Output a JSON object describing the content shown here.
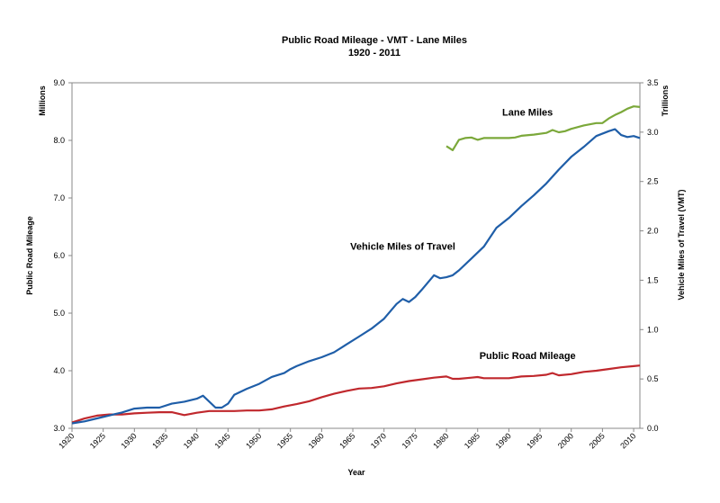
{
  "chart_data": {
    "type": "line",
    "title": "Public Road Mileage - VMT - Lane Miles",
    "subtitle": "1920 - 2011",
    "xlabel": "Year",
    "ylabel_left": "Public Road Mileage",
    "ylabel_left_units": "Millions",
    "ylabel_right": "Vehicle Miles of Travel (VMT)",
    "ylabel_right_units": "Trillions",
    "xlim": [
      1920,
      2011
    ],
    "ylim_left": [
      3.0,
      9.0
    ],
    "ylim_right": [
      0.0,
      3.5
    ],
    "x_ticks": [
      "1920",
      "1925",
      "1930",
      "1935",
      "1940",
      "1945",
      "1950",
      "1955",
      "1960",
      "1965",
      "1970",
      "1975",
      "1980",
      "1985",
      "1990",
      "1995",
      "2000",
      "2005",
      "2010"
    ],
    "y_left_ticks": [
      "3.0",
      "4.0",
      "5.0",
      "6.0",
      "7.0",
      "8.0",
      "9.0"
    ],
    "y_right_ticks": [
      "0.0",
      "0.5",
      "1.0",
      "1.5",
      "2.0",
      "2.5",
      "3.0",
      "3.5"
    ],
    "grid": false,
    "series": [
      {
        "name": "Public Road Mileage",
        "axis": "left",
        "color": "#c0282d",
        "points": [
          [
            1920,
            3.1
          ],
          [
            1922,
            3.17
          ],
          [
            1924,
            3.22
          ],
          [
            1926,
            3.24
          ],
          [
            1928,
            3.24
          ],
          [
            1930,
            3.26
          ],
          [
            1932,
            3.27
          ],
          [
            1934,
            3.28
          ],
          [
            1936,
            3.28
          ],
          [
            1938,
            3.23
          ],
          [
            1940,
            3.27
          ],
          [
            1942,
            3.3
          ],
          [
            1944,
            3.3
          ],
          [
            1946,
            3.3
          ],
          [
            1948,
            3.31
          ],
          [
            1950,
            3.31
          ],
          [
            1952,
            3.33
          ],
          [
            1954,
            3.38
          ],
          [
            1956,
            3.42
          ],
          [
            1958,
            3.47
          ],
          [
            1960,
            3.54
          ],
          [
            1962,
            3.6
          ],
          [
            1964,
            3.65
          ],
          [
            1966,
            3.69
          ],
          [
            1968,
            3.7
          ],
          [
            1970,
            3.73
          ],
          [
            1972,
            3.78
          ],
          [
            1974,
            3.82
          ],
          [
            1976,
            3.85
          ],
          [
            1978,
            3.88
          ],
          [
            1980,
            3.9
          ],
          [
            1981,
            3.86
          ],
          [
            1982,
            3.86
          ],
          [
            1984,
            3.88
          ],
          [
            1985,
            3.89
          ],
          [
            1986,
            3.87
          ],
          [
            1988,
            3.87
          ],
          [
            1990,
            3.87
          ],
          [
            1992,
            3.9
          ],
          [
            1994,
            3.91
          ],
          [
            1996,
            3.93
          ],
          [
            1997,
            3.96
          ],
          [
            1998,
            3.92
          ],
          [
            2000,
            3.94
          ],
          [
            2002,
            3.98
          ],
          [
            2004,
            4.0
          ],
          [
            2006,
            4.03
          ],
          [
            2008,
            4.06
          ],
          [
            2010,
            4.08
          ],
          [
            2011,
            4.09
          ]
        ]
      },
      {
        "name": "Vehicle Miles of Travel",
        "axis": "right",
        "color": "#1f5ea8",
        "points": [
          [
            1920,
            0.05
          ],
          [
            1922,
            0.07
          ],
          [
            1924,
            0.1
          ],
          [
            1926,
            0.13
          ],
          [
            1928,
            0.16
          ],
          [
            1930,
            0.2
          ],
          [
            1932,
            0.21
          ],
          [
            1934,
            0.21
          ],
          [
            1936,
            0.25
          ],
          [
            1938,
            0.27
          ],
          [
            1940,
            0.3
          ],
          [
            1941,
            0.33
          ],
          [
            1943,
            0.21
          ],
          [
            1944,
            0.21
          ],
          [
            1945,
            0.25
          ],
          [
            1946,
            0.34
          ],
          [
            1948,
            0.4
          ],
          [
            1950,
            0.45
          ],
          [
            1952,
            0.52
          ],
          [
            1954,
            0.56
          ],
          [
            1955,
            0.6
          ],
          [
            1956,
            0.63
          ],
          [
            1958,
            0.68
          ],
          [
            1960,
            0.72
          ],
          [
            1962,
            0.77
          ],
          [
            1964,
            0.85
          ],
          [
            1966,
            0.93
          ],
          [
            1968,
            1.01
          ],
          [
            1970,
            1.11
          ],
          [
            1972,
            1.26
          ],
          [
            1973,
            1.31
          ],
          [
            1974,
            1.28
          ],
          [
            1975,
            1.33
          ],
          [
            1976,
            1.4
          ],
          [
            1978,
            1.55
          ],
          [
            1979,
            1.52
          ],
          [
            1980,
            1.53
          ],
          [
            1981,
            1.55
          ],
          [
            1982,
            1.6
          ],
          [
            1984,
            1.72
          ],
          [
            1986,
            1.84
          ],
          [
            1988,
            2.03
          ],
          [
            1990,
            2.13
          ],
          [
            1992,
            2.25
          ],
          [
            1994,
            2.36
          ],
          [
            1996,
            2.48
          ],
          [
            1998,
            2.62
          ],
          [
            2000,
            2.75
          ],
          [
            2002,
            2.85
          ],
          [
            2004,
            2.96
          ],
          [
            2006,
            3.01
          ],
          [
            2007,
            3.03
          ],
          [
            2008,
            2.97
          ],
          [
            2009,
            2.95
          ],
          [
            2010,
            2.96
          ],
          [
            2011,
            2.94
          ]
        ]
      },
      {
        "name": "Lane Miles",
        "axis": "left",
        "color": "#7ba83a",
        "points": [
          [
            1980,
            7.9
          ],
          [
            1981,
            7.83
          ],
          [
            1982,
            8.01
          ],
          [
            1983,
            8.04
          ],
          [
            1984,
            8.05
          ],
          [
            1985,
            8.01
          ],
          [
            1986,
            8.04
          ],
          [
            1988,
            8.04
          ],
          [
            1990,
            8.04
          ],
          [
            1991,
            8.05
          ],
          [
            1992,
            8.08
          ],
          [
            1994,
            8.1
          ],
          [
            1996,
            8.13
          ],
          [
            1997,
            8.18
          ],
          [
            1998,
            8.14
          ],
          [
            1999,
            8.16
          ],
          [
            2000,
            8.2
          ],
          [
            2002,
            8.26
          ],
          [
            2004,
            8.3
          ],
          [
            2005,
            8.3
          ],
          [
            2006,
            8.38
          ],
          [
            2007,
            8.44
          ],
          [
            2008,
            8.49
          ],
          [
            2009,
            8.55
          ],
          [
            2010,
            8.59
          ],
          [
            2011,
            8.58
          ]
        ]
      }
    ],
    "annotations": [
      {
        "text": "Lane Miles",
        "x": 1993,
        "y_left": 8.43
      },
      {
        "text": "Vehicle Miles of Travel",
        "x": 1973,
        "y_left": 6.1
      },
      {
        "text": "Public Road Mileage",
        "x": 1993,
        "y_left": 4.2
      }
    ]
  }
}
